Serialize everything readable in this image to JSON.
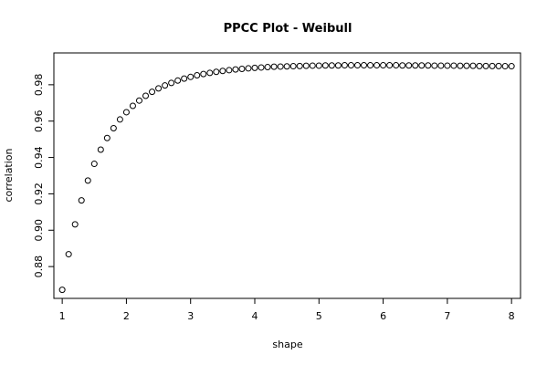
{
  "chart_data": {
    "type": "scatter",
    "title": "PPCC Plot - Weibull",
    "xlabel": "shape",
    "ylabel": "correlation",
    "xlim": [
      0.87,
      8.14
    ],
    "ylim": [
      0.8625,
      0.9975
    ],
    "xticks": [
      1,
      2,
      3,
      4,
      5,
      6,
      7,
      8
    ],
    "xtick_labels": [
      "1",
      "2",
      "3",
      "4",
      "5",
      "6",
      "7",
      "8"
    ],
    "yticks": [
      0.88,
      0.9,
      0.92,
      0.94,
      0.96,
      0.98
    ],
    "ytick_labels": [
      "0.88",
      "0.90",
      "0.92",
      "0.94",
      "0.96",
      "0.98"
    ],
    "grid": false,
    "marker": "open-circle",
    "color": "#000000",
    "x": [
      1.0,
      1.1,
      1.2,
      1.3,
      1.4,
      1.5,
      1.6,
      1.7,
      1.8,
      1.9,
      2.0,
      2.1,
      2.2,
      2.3,
      2.4,
      2.5,
      2.6,
      2.7,
      2.8,
      2.9,
      3.0,
      3.1,
      3.2,
      3.3,
      3.4,
      3.5,
      3.6,
      3.7,
      3.8,
      3.9,
      4.0,
      4.1,
      4.2,
      4.3,
      4.4,
      4.5,
      4.6,
      4.7,
      4.8,
      4.9,
      5.0,
      5.1,
      5.2,
      5.3,
      5.4,
      5.5,
      5.6,
      5.7,
      5.8,
      5.9,
      6.0,
      6.1,
      6.2,
      6.3,
      6.4,
      6.5,
      6.6,
      6.7,
      6.8,
      6.9,
      7.0,
      7.1,
      7.2,
      7.3,
      7.4,
      7.5,
      7.6,
      7.7,
      7.8,
      7.9,
      8.0
    ],
    "y": [
      0.8672,
      0.8868,
      0.9032,
      0.9164,
      0.9273,
      0.9365,
      0.9443,
      0.9507,
      0.9561,
      0.9609,
      0.9649,
      0.9684,
      0.9713,
      0.9739,
      0.9761,
      0.978,
      0.9796,
      0.981,
      0.9823,
      0.9834,
      0.9843,
      0.9852,
      0.9859,
      0.9865,
      0.9871,
      0.9876,
      0.988,
      0.9884,
      0.9887,
      0.989,
      0.9893,
      0.9895,
      0.9897,
      0.9899,
      0.99,
      0.9901,
      0.9902,
      0.9903,
      0.9904,
      0.9905,
      0.9905,
      0.9906,
      0.9906,
      0.9906,
      0.9907,
      0.9907,
      0.9907,
      0.9907,
      0.9907,
      0.9907,
      0.9907,
      0.9907,
      0.9907,
      0.9906,
      0.9906,
      0.9906,
      0.9906,
      0.9906,
      0.9905,
      0.9905,
      0.9905,
      0.9905,
      0.9904,
      0.9904,
      0.9904,
      0.9903,
      0.9903,
      0.9903,
      0.9903,
      0.9902,
      0.9902
    ]
  }
}
